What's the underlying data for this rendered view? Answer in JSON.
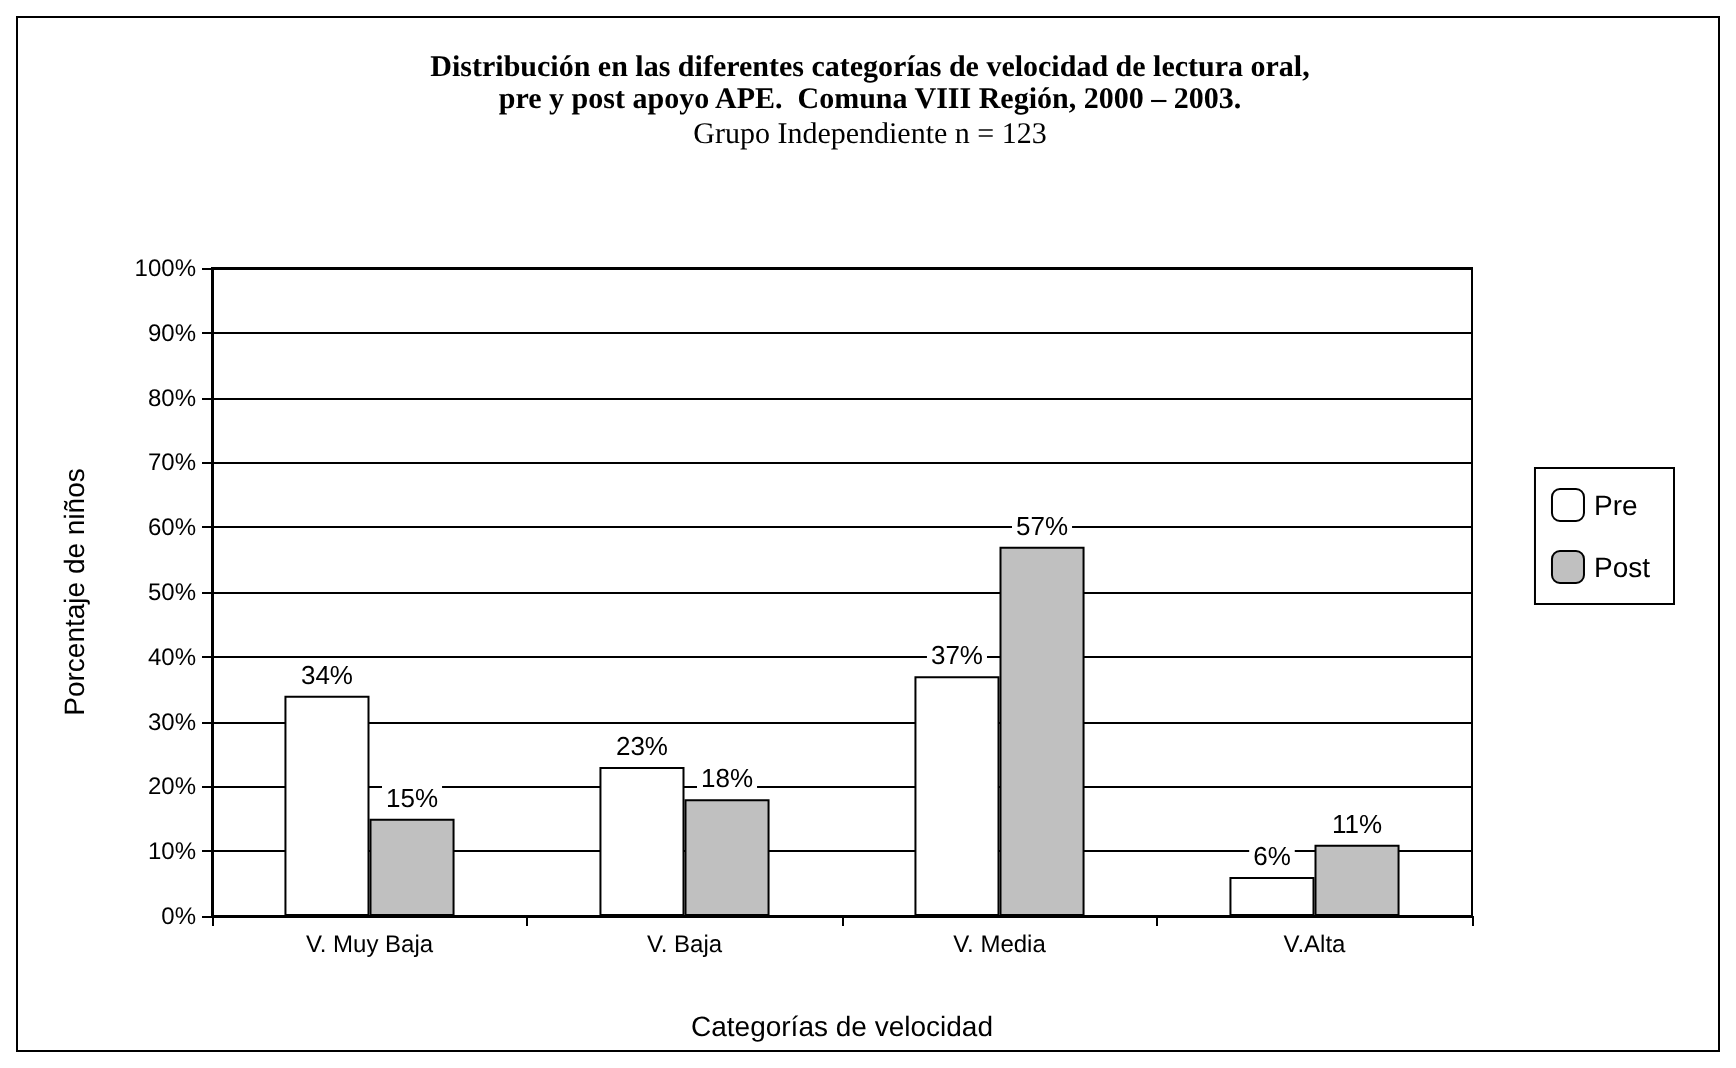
{
  "chart_data": {
    "type": "bar",
    "title": "Distribución en las diferentes categorías de velocidad de lectura oral,\npre y post apoyo APE.  Comuna VIII Región, 2000 – 2003.",
    "subtitle": "Grupo Independiente n = 123",
    "xlabel": "Categorías de velocidad",
    "ylabel": "Porcentaje de niños",
    "categories": [
      "V. Muy Baja",
      "V. Baja",
      "V. Media",
      "V.Alta"
    ],
    "series": [
      {
        "name": "Pre",
        "color": "#ffffff",
        "values": [
          34,
          23,
          37,
          6
        ],
        "value_labels": [
          "34%",
          "23%",
          "37%",
          "6%"
        ]
      },
      {
        "name": "Post",
        "color": "#c0c0c0",
        "values": [
          15,
          18,
          57,
          11
        ],
        "value_labels": [
          "15%",
          "18%",
          "57%",
          "11%"
        ]
      }
    ],
    "ylim": [
      0,
      100
    ],
    "yticks": [
      {
        "value": 0,
        "label": "0%"
      },
      {
        "value": 10,
        "label": "10%"
      },
      {
        "value": 20,
        "label": "20%"
      },
      {
        "value": 30,
        "label": "30%"
      },
      {
        "value": 40,
        "label": "40%"
      },
      {
        "value": 50,
        "label": "50%"
      },
      {
        "value": 60,
        "label": "60%"
      },
      {
        "value": 70,
        "label": "70%"
      },
      {
        "value": 80,
        "label": "80%"
      },
      {
        "value": 90,
        "label": "90%"
      },
      {
        "value": 100,
        "label": "100%"
      }
    ],
    "grid": "y",
    "legend": "right"
  }
}
